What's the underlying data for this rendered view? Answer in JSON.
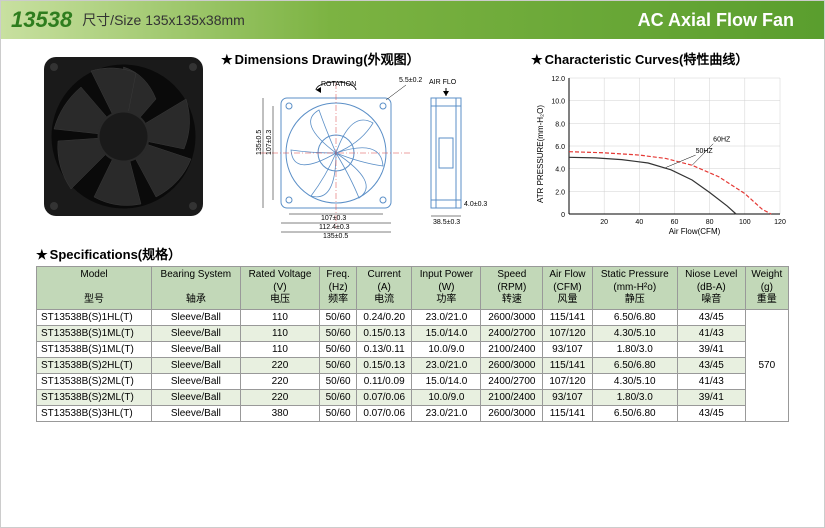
{
  "header": {
    "model": "13538",
    "size_label": "尺寸/Size 135x135x38mm",
    "title": "AC Axial Flow Fan"
  },
  "sections": {
    "dimensions": "Dimensions Drawing(外观图）",
    "curves": "Characteristic Curves(特性曲线）",
    "specs": "Specifications(规格）"
  },
  "drawing": {
    "rotation": "ROTATION",
    "airflow": "AIR  FLO",
    "w": "135±0.5",
    "h": "135±0.5",
    "hole": "107±0.3",
    "hole2": "107±0.3",
    "slot": "112.4±0.3",
    "depth": "38.5±0.3",
    "d": "4.0±0.3",
    "corner": "5.5±0.2"
  },
  "chart": {
    "ylabel": "ATR PRESSURE(mm-H₂O)",
    "xlabel": "Air Flow(CFM)",
    "ylim": [
      0,
      12
    ],
    "ytick_step": 2,
    "xlim": [
      0,
      120
    ],
    "xtick_step": 20,
    "series": [
      {
        "label": "60HZ",
        "color": "#e53935",
        "dash": "4 2",
        "points": [
          [
            0,
            5.5
          ],
          [
            20,
            5.4
          ],
          [
            40,
            5.2
          ],
          [
            55,
            4.9
          ],
          [
            70,
            4.3
          ],
          [
            85,
            3.3
          ],
          [
            100,
            1.8
          ],
          [
            110,
            0.4
          ],
          [
            115,
            0
          ]
        ]
      },
      {
        "label": "50HZ",
        "color": "#333333",
        "dash": "none",
        "points": [
          [
            0,
            5.0
          ],
          [
            15,
            4.95
          ],
          [
            30,
            4.8
          ],
          [
            45,
            4.5
          ],
          [
            58,
            3.9
          ],
          [
            70,
            3.0
          ],
          [
            80,
            1.9
          ],
          [
            90,
            0.7
          ],
          [
            95,
            0
          ]
        ]
      }
    ],
    "grid_color": "#d0d0d0",
    "axis_color": "#000"
  },
  "table": {
    "columns": [
      {
        "en": "Model",
        "unit": "",
        "cn": "型号"
      },
      {
        "en": "Bearing System",
        "unit": "",
        "cn": "轴承"
      },
      {
        "en": "Rated Voltage",
        "unit": "(V)",
        "cn": "电压"
      },
      {
        "en": "Freq.",
        "unit": "(Hz)",
        "cn": "频率"
      },
      {
        "en": "Current",
        "unit": "(A)",
        "cn": "电流"
      },
      {
        "en": "Input Power",
        "unit": "(W)",
        "cn": "功率"
      },
      {
        "en": "Speed",
        "unit": "(RPM)",
        "cn": "转速"
      },
      {
        "en": "Air Flow",
        "unit": "(CFM)",
        "cn": "风量"
      },
      {
        "en": "Static Pressure",
        "unit": "(mm-H²o)",
        "cn": "静压"
      },
      {
        "en": "Niose Level",
        "unit": "(dB-A)",
        "cn": "噪音"
      },
      {
        "en": "Weight",
        "unit": "(g)",
        "cn": "重量"
      }
    ],
    "rows": [
      [
        "ST13538B(S)1HL(T)",
        "Sleeve/Ball",
        "110",
        "50/60",
        "0.24/0.20",
        "23.0/21.0",
        "2600/3000",
        "115/141",
        "6.50/6.80",
        "43/45"
      ],
      [
        "ST13538B(S)1ML(T)",
        "Sleeve/Ball",
        "110",
        "50/60",
        "0.15/0.13",
        "15.0/14.0",
        "2400/2700",
        "107/120",
        "4.30/5.10",
        "41/43"
      ],
      [
        "ST13538B(S)1ML(T)",
        "Sleeve/Ball",
        "110",
        "50/60",
        "0.13/0.11",
        "10.0/9.0",
        "2100/2400",
        "93/107",
        "1.80/3.0",
        "39/41"
      ],
      [
        "ST13538B(S)2HL(T)",
        "Sleeve/Ball",
        "220",
        "50/60",
        "0.15/0.13",
        "23.0/21.0",
        "2600/3000",
        "115/141",
        "6.50/6.80",
        "43/45"
      ],
      [
        "ST13538B(S)2ML(T)",
        "Sleeve/Ball",
        "220",
        "50/60",
        "0.11/0.09",
        "15.0/14.0",
        "2400/2700",
        "107/120",
        "4.30/5.10",
        "41/43"
      ],
      [
        "ST13538B(S)2ML(T)",
        "Sleeve/Ball",
        "220",
        "50/60",
        "0.07/0.06",
        "10.0/9.0",
        "2100/2400",
        "93/107",
        "1.80/3.0",
        "39/41"
      ],
      [
        "ST13538B(S)3HL(T)",
        "Sleeve/Ball",
        "380",
        "50/60",
        "0.07/0.06",
        "23.0/21.0",
        "2600/3000",
        "115/141",
        "6.50/6.80",
        "43/45"
      ]
    ],
    "weight": "570"
  }
}
